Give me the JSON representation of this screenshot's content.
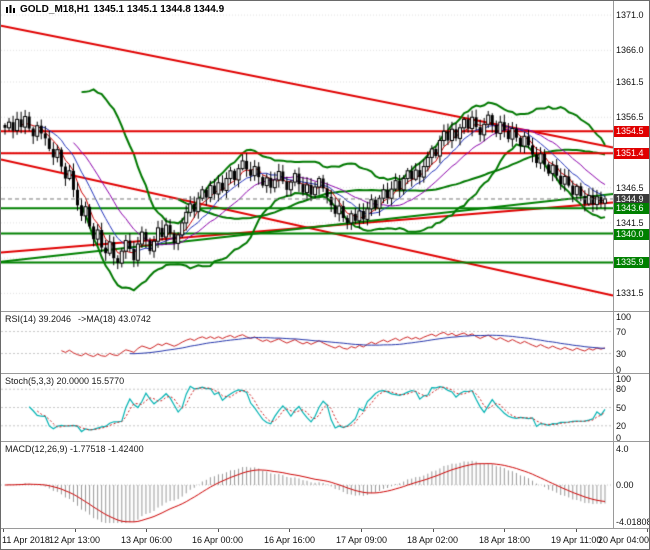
{
  "header": {
    "symbol": "GOLD_M18,H1",
    "ohlc": "1345.1 1345.1 1344.8 1344.9"
  },
  "icons": {
    "chart_icon": "bar-chart-glyph"
  },
  "colors": {
    "bands": "#007800",
    "resistance": "#e00000",
    "support": "#008000",
    "rsi": "#cc2222",
    "rsi_ma": "#2233aa",
    "stoch_k": "#00b2b2",
    "stoch_d": "#cc2222",
    "macd_hist": "#999999",
    "macd_signal": "#cc0000",
    "candle_up": "#ffffff",
    "candle_down": "#000000"
  },
  "x_axis": {
    "labels": [
      "11 Apr 2018",
      "12 Apr 13:00",
      "13 Apr 06:00",
      "16 Apr 00:00",
      "16 Apr 16:00",
      "17 Apr 09:00",
      "18 Apr 02:00",
      "18 Apr 18:00",
      "19 Apr 11:00",
      "20 Apr 04:00"
    ]
  },
  "main_chart": {
    "price_max": 1373.0,
    "price_min": 1329.0,
    "price_axis_ticks": [
      "1371.0",
      "1366.0",
      "1361.5",
      "1356.5",
      "1346.5",
      "1341.5",
      "1331.5"
    ],
    "tick_prices": [
      1371.0,
      1366.0,
      1361.5,
      1356.5,
      1346.5,
      1341.5,
      1331.5
    ],
    "grid_prices": [
      1371.0,
      1366.0,
      1361.5,
      1356.5,
      1351.5,
      1346.5,
      1341.5,
      1336.5,
      1331.5
    ],
    "level_badges": [
      {
        "label": "1354.5",
        "price": 1354.5,
        "color": "#e00000"
      },
      {
        "label": "1351.4",
        "price": 1351.4,
        "color": "#e00000"
      },
      {
        "label": "1344.9",
        "price": 1344.9,
        "color": "#3a3a3a"
      },
      {
        "label": "1343.6",
        "price": 1343.6,
        "color": "#008000"
      },
      {
        "label": "1340.0",
        "price": 1340.0,
        "color": "#008000"
      },
      {
        "label": "1335.9",
        "price": 1335.9,
        "color": "#008000"
      }
    ],
    "hlines": [
      {
        "price": 1354.5,
        "color": "#e00000",
        "width": 2
      },
      {
        "price": 1351.4,
        "color": "#e00000",
        "width": 2
      },
      {
        "price": 1343.6,
        "color": "#008000",
        "width": 2
      },
      {
        "price": 1340.0,
        "color": "#008000",
        "width": 2
      },
      {
        "price": 1335.9,
        "color": "#008000",
        "width": 2
      }
    ],
    "trendlines": [
      {
        "p1": 1369.5,
        "p2": 1352.2,
        "color": "#e00000",
        "width": 2
      },
      {
        "p1": 1350.5,
        "p2": 1331.2,
        "color": "#e00000",
        "width": 2
      },
      {
        "p1": 1337.3,
        "p2": 1344.4,
        "color": "#e00000",
        "width": 2
      },
      {
        "p1": 1336.0,
        "p2": 1345.6,
        "color": "#008000",
        "width": 2
      }
    ],
    "current_price": 1344.9
  },
  "chart_data": {
    "type": "candlestick",
    "symbol": "GOLD_M18",
    "timeframe": "H1",
    "title": "GOLD_M18,H1 1345.1 1345.1 1344.8 1344.9",
    "current": {
      "open": 1345.1,
      "high": 1345.1,
      "low": 1344.8,
      "close": 1344.9
    },
    "ylim": [
      1329.0,
      1373.0
    ],
    "x_tick_labels": [
      "11 Apr 2018",
      "12 Apr 13:00",
      "13 Apr 06:00",
      "16 Apr 00:00",
      "16 Apr 16:00",
      "17 Apr 09:00",
      "18 Apr 02:00",
      "18 Apr 18:00",
      "19 Apr 11:00",
      "20 Apr 04:00"
    ],
    "levels": {
      "resistance": [
        1354.5,
        1351.4
      ],
      "support": [
        1343.6,
        1340.0,
        1335.9
      ]
    },
    "open_first": 1355.4,
    "closes": [
      1355.0,
      1355.8,
      1354.6,
      1356.2,
      1355.1,
      1356.6,
      1354.9,
      1353.8,
      1355.3,
      1354.2,
      1353.5,
      1352.0,
      1350.8,
      1351.9,
      1349.5,
      1347.8,
      1348.9,
      1346.2,
      1344.0,
      1342.5,
      1343.8,
      1341.0,
      1339.2,
      1340.5,
      1338.0,
      1337.2,
      1338.8,
      1336.5,
      1335.8,
      1337.5,
      1339.0,
      1337.8,
      1336.2,
      1338.5,
      1340.2,
      1339.0,
      1337.5,
      1338.9,
      1340.8,
      1339.5,
      1341.2,
      1340.0,
      1338.6,
      1339.8,
      1341.5,
      1343.0,
      1344.2,
      1343.1,
      1345.0,
      1346.2,
      1345.1,
      1346.8,
      1345.6,
      1347.2,
      1346.1,
      1347.8,
      1348.9,
      1347.6,
      1349.2,
      1350.3,
      1349.1,
      1348.2,
      1349.5,
      1348.0,
      1346.8,
      1347.9,
      1346.5,
      1347.6,
      1348.8,
      1347.4,
      1346.2,
      1347.3,
      1348.5,
      1347.0,
      1345.8,
      1346.9,
      1345.5,
      1346.6,
      1347.8,
      1346.4,
      1345.2,
      1344.0,
      1342.8,
      1343.9,
      1342.2,
      1341.5,
      1342.8,
      1341.8,
      1343.2,
      1342.0,
      1343.5,
      1344.8,
      1343.6,
      1345.0,
      1346.2,
      1345.0,
      1346.3,
      1347.5,
      1346.2,
      1347.8,
      1348.9,
      1347.7,
      1349.0,
      1348.0,
      1349.5,
      1350.8,
      1352.0,
      1351.0,
      1353.2,
      1354.5,
      1353.2,
      1354.8,
      1353.5,
      1355.0,
      1356.2,
      1354.9,
      1356.5,
      1355.1,
      1354.0,
      1355.5,
      1356.8,
      1355.4,
      1354.2,
      1355.8,
      1354.6,
      1353.4,
      1354.9,
      1353.6,
      1352.4,
      1353.8,
      1352.5,
      1351.2,
      1350.0,
      1351.3,
      1349.8,
      1348.5,
      1349.7,
      1348.2,
      1347.0,
      1348.1,
      1346.8,
      1345.5,
      1346.7,
      1345.3,
      1344.2,
      1345.4,
      1344.1,
      1345.2,
      1344.3,
      1344.9
    ],
    "indicators": {
      "rsi": {
        "period": 14,
        "value": 39.2046,
        "ma_period": 18,
        "ma_value": 43.0742
      },
      "stochastic": {
        "k_period": 5,
        "slowing": 3,
        "d_period": 3,
        "k": 20.0,
        "d": 15.577
      },
      "macd": {
        "fast": 12,
        "slow": 26,
        "signal_period": 9,
        "value": -1.77518,
        "signal": -1.424
      }
    }
  },
  "rsi_panel": {
    "title": "RSI(14) 39.2046",
    "ma_title": "->MA(18) 43.0742",
    "axis": [
      {
        "label": "100",
        "value": 100
      },
      {
        "label": "70",
        "value": 70
      },
      {
        "label": "30",
        "value": 30
      },
      {
        "label": "0",
        "value": 0
      }
    ],
    "grid": [
      70,
      30
    ]
  },
  "stoch_panel": {
    "title": "Stoch(5,3,3) 20.0000 15.5770",
    "axis": [
      {
        "label": "100",
        "value": 100
      },
      {
        "label": "80",
        "value": 80
      },
      {
        "label": "50",
        "value": 50
      },
      {
        "label": "20",
        "value": 20
      },
      {
        "label": "0",
        "value": 0
      }
    ],
    "grid": [
      80,
      50,
      20
    ]
  },
  "macd_panel": {
    "title": "MACD(12,26,9) -1.77518 -1.42400",
    "axis_top": "4.0",
    "axis_zero": "0.00",
    "axis_bottom": "-4.01808",
    "range": 4.05
  }
}
